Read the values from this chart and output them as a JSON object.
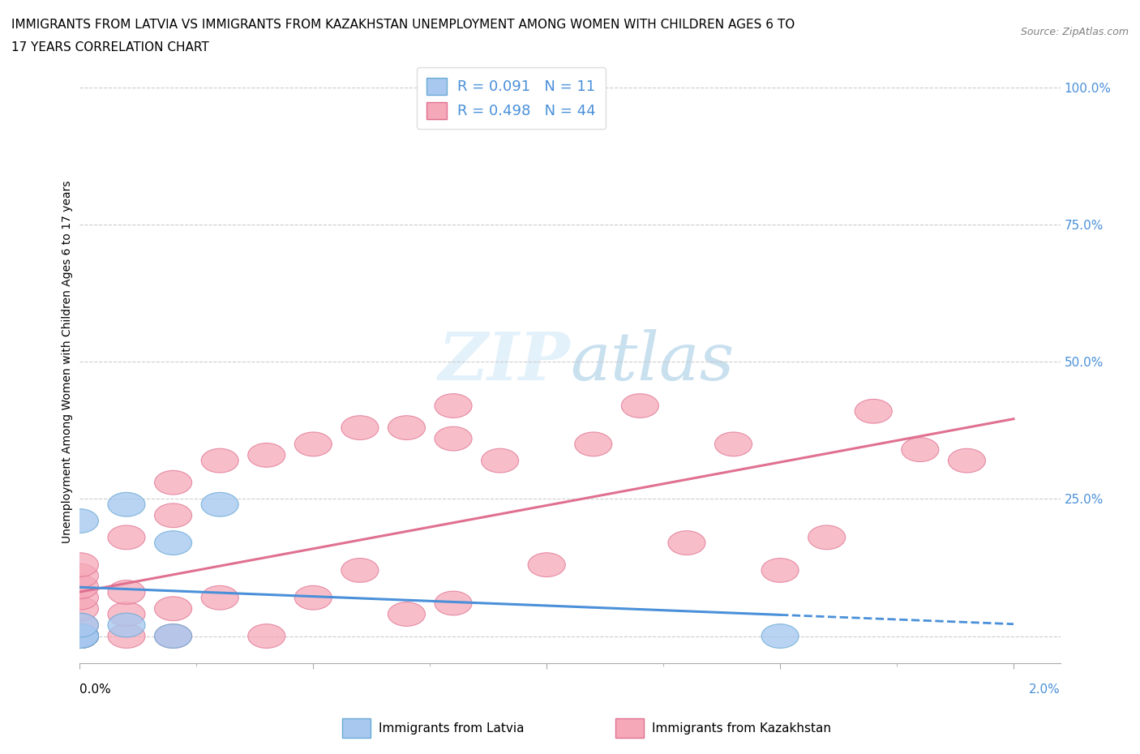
{
  "title_line1": "IMMIGRANTS FROM LATVIA VS IMMIGRANTS FROM KAZAKHSTAN UNEMPLOYMENT AMONG WOMEN WITH CHILDREN AGES 6 TO",
  "title_line2": "17 YEARS CORRELATION CHART",
  "source": "Source: ZipAtlas.com",
  "ylabel": "Unemployment Among Women with Children Ages 6 to 17 years",
  "latvia_color": "#a8c8f0",
  "latvia_edge_color": "#6aaad4",
  "kazakhstan_color": "#f5a8b8",
  "kazakhstan_edge_color": "#e07090",
  "latvia_R": 0.091,
  "latvia_N": 11,
  "kazakhstan_R": 0.498,
  "kazakhstan_N": 44,
  "latvia_line_color": "#4a90d9",
  "kazakhstan_line_color": "#e07090",
  "watermark_color": "#d0e8f8",
  "xlim": [
    0.0,
    0.021
  ],
  "ylim": [
    -0.05,
    1.05
  ],
  "latvia_x": [
    0.0,
    0.0,
    0.0,
    0.0,
    0.0,
    0.001,
    0.001,
    0.002,
    0.002,
    0.003,
    0.015
  ],
  "latvia_y": [
    0.0,
    0.0,
    0.0,
    0.02,
    0.21,
    0.02,
    0.24,
    0.17,
    0.0,
    0.24,
    0.0
  ],
  "kazakhstan_x": [
    0.0,
    0.0,
    0.0,
    0.0,
    0.0,
    0.0,
    0.0,
    0.0,
    0.0,
    0.0,
    0.0,
    0.0,
    0.001,
    0.001,
    0.001,
    0.001,
    0.002,
    0.002,
    0.002,
    0.002,
    0.003,
    0.003,
    0.004,
    0.004,
    0.005,
    0.005,
    0.006,
    0.006,
    0.007,
    0.007,
    0.008,
    0.008,
    0.008,
    0.009,
    0.01,
    0.011,
    0.012,
    0.013,
    0.014,
    0.015,
    0.016,
    0.017,
    0.018,
    0.019
  ],
  "kazakhstan_y": [
    0.0,
    0.0,
    0.0,
    0.0,
    0.0,
    0.0,
    0.02,
    0.05,
    0.07,
    0.09,
    0.11,
    0.13,
    0.0,
    0.04,
    0.08,
    0.18,
    0.0,
    0.05,
    0.22,
    0.28,
    0.07,
    0.32,
    0.0,
    0.33,
    0.07,
    0.35,
    0.12,
    0.38,
    0.04,
    0.38,
    0.06,
    0.36,
    0.42,
    0.32,
    0.13,
    0.35,
    0.42,
    0.17,
    0.35,
    0.12,
    0.18,
    0.41,
    0.34,
    0.32
  ]
}
